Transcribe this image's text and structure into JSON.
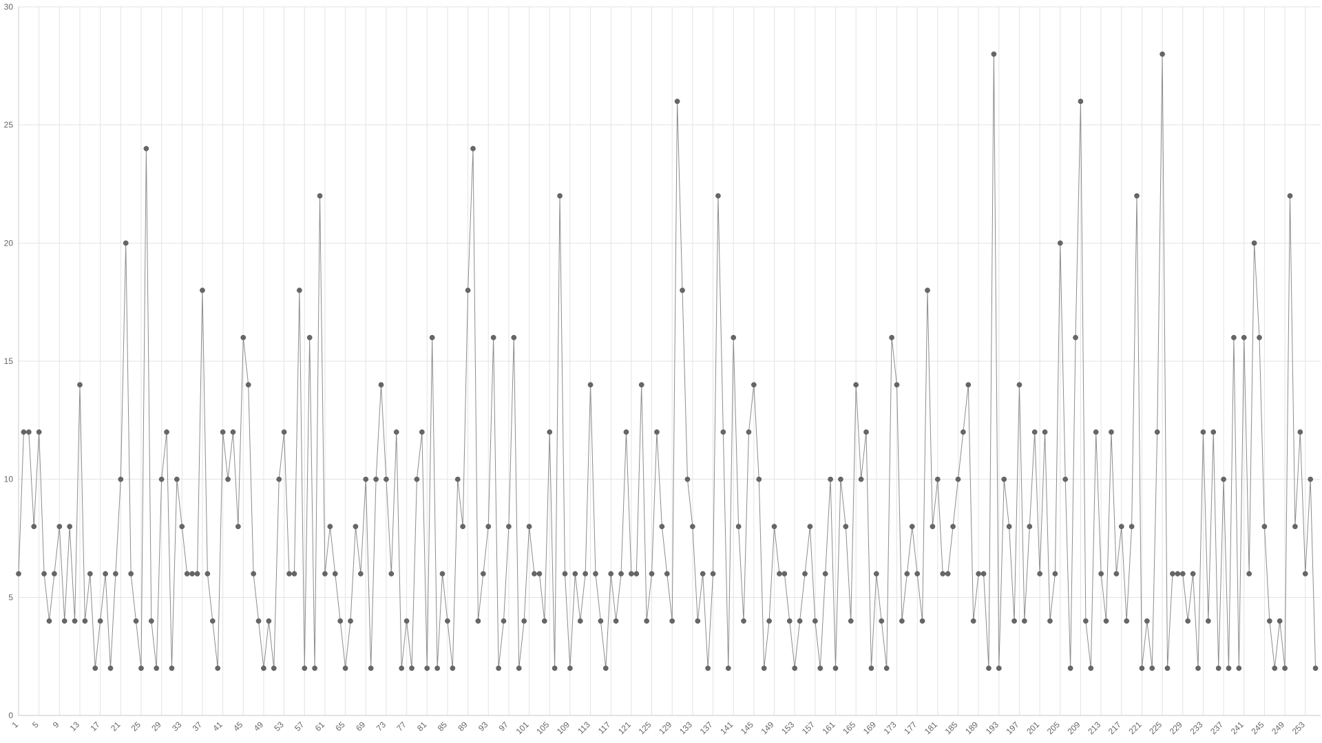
{
  "chart_data": {
    "type": "line",
    "title": "",
    "xlabel": "",
    "ylabel": "",
    "ylim": [
      0,
      30
    ],
    "yticks": [
      0,
      5,
      10,
      15,
      20,
      25,
      30
    ],
    "xlim": [
      1,
      256
    ],
    "xtick_step": 4,
    "grid": true,
    "legend": "none",
    "colors": {
      "line": "#8c8c8c",
      "marker": "#666666",
      "grid": "#e3e3e3"
    },
    "series": [
      {
        "values": [
          6,
          12,
          12,
          8,
          12,
          6,
          4,
          6,
          8,
          4,
          8,
          4,
          14,
          4,
          6,
          2,
          4,
          6,
          2,
          6,
          10,
          20,
          6,
          4,
          2,
          24,
          4,
          2,
          10,
          12,
          2,
          10,
          8,
          6,
          6,
          6,
          18,
          6,
          4,
          2,
          12,
          10,
          12,
          8,
          16,
          14,
          6,
          4,
          2,
          4,
          2,
          10,
          12,
          6,
          6,
          18,
          2,
          16,
          2,
          22,
          6,
          8,
          6,
          4,
          2,
          4,
          8,
          6,
          10,
          2,
          10,
          14,
          10,
          6,
          12,
          2,
          4,
          2,
          10,
          12,
          2,
          16,
          2,
          6,
          4,
          2,
          10,
          8,
          18,
          24,
          4,
          6,
          8,
          16,
          2,
          4,
          8,
          16,
          2,
          4,
          8,
          6,
          6,
          4,
          12,
          2,
          22,
          6,
          2,
          6,
          4,
          6,
          14,
          6,
          4,
          2,
          6,
          4,
          6,
          12,
          6,
          6,
          14,
          4,
          6,
          12,
          8,
          6,
          4,
          26,
          18,
          10,
          8,
          4,
          6,
          2,
          6,
          22,
          12,
          2,
          16,
          8,
          4,
          12,
          14,
          10,
          2,
          4,
          8,
          6,
          6,
          4,
          2,
          4,
          6,
          8,
          4,
          2,
          6,
          10,
          2,
          10,
          8,
          4,
          14,
          10,
          12,
          2,
          6,
          4,
          2,
          16,
          14,
          4,
          6,
          8,
          6,
          4,
          18,
          8,
          10,
          6,
          6,
          8,
          10,
          12,
          14,
          4,
          6,
          6,
          2,
          28,
          2,
          10,
          8,
          4,
          14,
          4,
          8,
          12,
          6,
          12,
          4,
          6,
          20,
          10,
          2,
          16,
          26,
          4,
          2,
          12,
          6,
          4,
          12,
          6,
          8,
          4,
          8,
          22,
          2,
          4,
          2,
          12,
          28,
          2,
          6,
          6,
          6,
          4,
          6,
          2,
          12,
          4,
          12,
          2,
          10,
          2,
          16,
          2,
          16,
          6,
          20,
          16,
          8,
          4,
          2,
          4,
          2,
          22,
          8,
          12,
          6,
          10,
          2
        ]
      }
    ]
  }
}
